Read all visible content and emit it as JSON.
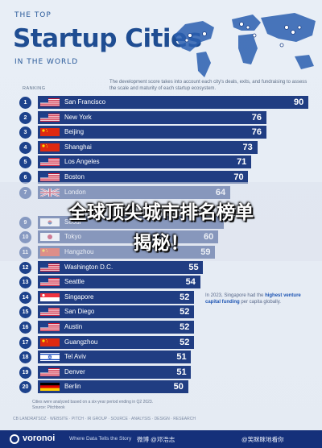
{
  "header": {
    "kicker_top": "THE TOP",
    "title": "Startup Cities",
    "kicker_bottom": "IN THE WORLD",
    "ranking_label": "RANKING",
    "description": "The development score takes into account each city's deals, exits, and fundraising to assess the scale and maturity of each startup ecosystem."
  },
  "chart_data": {
    "type": "bar",
    "orientation": "horizontal",
    "categories": [
      "San Francisco",
      "New York",
      "Beijing",
      "Shanghai",
      "Los Angeles",
      "Boston",
      "London",
      "Seoul",
      "Tokyo",
      "Hangzhou",
      "Washington D.C.",
      "Seattle",
      "Singapore",
      "San Diego",
      "Austin",
      "Guangzhou",
      "Tel Aviv",
      "Denver",
      "Berlin"
    ],
    "ranks": [
      1,
      2,
      3,
      4,
      5,
      6,
      7,
      9,
      10,
      11,
      12,
      13,
      14,
      15,
      16,
      17,
      18,
      19,
      20
    ],
    "values": [
      90,
      76,
      76,
      73,
      71,
      70,
      64,
      null,
      60,
      59,
      55,
      54,
      52,
      52,
      52,
      52,
      51,
      51,
      50
    ],
    "value_labels": [
      "90",
      "76",
      "76",
      "73",
      "71",
      "70",
      "64",
      "",
      "60",
      "59",
      "55",
      "54",
      "52",
      "52",
      "52",
      "52",
      "51",
      "51",
      "50"
    ],
    "flags": [
      "us",
      "us",
      "cn",
      "cn",
      "us",
      "us",
      "gb",
      "kr",
      "jp",
      "cn",
      "us",
      "us",
      "sg",
      "us",
      "us",
      "cn",
      "il",
      "us",
      "de"
    ],
    "xlim": [
      0,
      90
    ],
    "bar_color": "#203d82"
  },
  "annotation": {
    "pre": "In 2023, Singapore had the ",
    "bold": "highest venture capital funding",
    "post": " per capita globally."
  },
  "footnote": "Cities were analyzed based on a six-year period ending in Q2 2023.\nSource: Pitchbook",
  "partners": "CB LANDRATSOZ   ·  WEBSITE  ·  PITCH  ·  IR GROUP  ·  SOURCE  ·  ANALYSIS  ·  DESIGN  ·  RESEARCH",
  "footer": {
    "brand": "voronoi",
    "tagline": "Where Data Tells the Story",
    "social": "微博 @邓浩志",
    "watermark": "@笑眯眯地看你"
  },
  "overlay": {
    "line1": "全球顶尖城市排名榜单",
    "line2": "揭秘！"
  }
}
